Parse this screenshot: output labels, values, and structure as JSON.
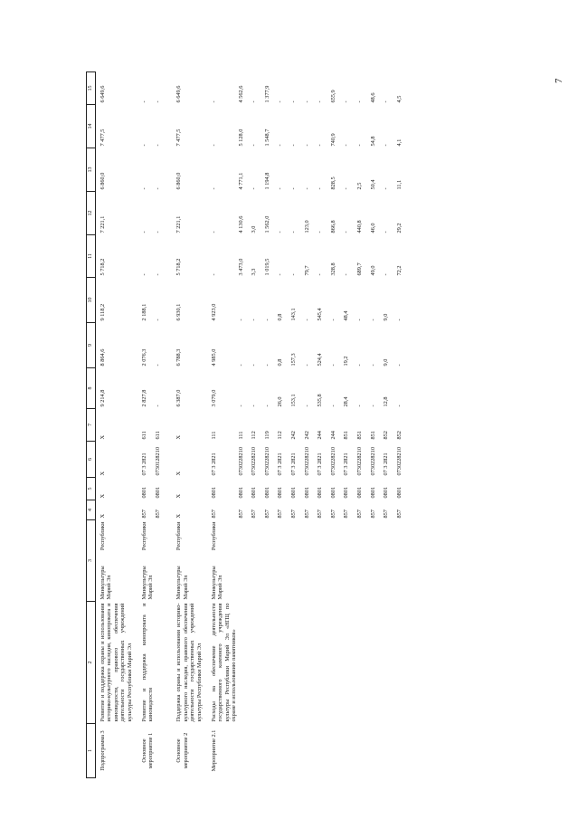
{
  "page_number": "7",
  "columns": [
    "1",
    "2",
    "3",
    "4",
    "5",
    "6",
    "7",
    "8",
    "9",
    "10",
    "11",
    "12",
    "13",
    "14",
    "15"
  ],
  "rows": [
    {
      "c": [
        "Подпрограмма 3",
        "Развитие и поддержка охраны и использования историко-культурного наследия, кинопроката и киновидеости, правового обеспечения деятельности государственных учреждений культуры Республики Марий Эл",
        "Минкультуры Республики Марий Эл",
        "X",
        "X",
        "X",
        "X",
        "9 214,8",
        "8 864,6",
        "9 118,2",
        "5 718,2",
        "7 221,1",
        "6 860,0",
        "7 477,5",
        "6 649,6"
      ]
    },
    {
      "c": [
        "Основное мероприятие 1",
        "Развитие и поддержка кинопроката и киновидеости",
        "Минкультуры Республики Марий Эл",
        "857",
        "0801",
        "07 3 2821",
        "611",
        "2 827,8",
        "2 076,3",
        "2 188,1",
        "-",
        "-",
        "-",
        "-",
        "-"
      ]
    },
    {
      "c": [
        "",
        "",
        "",
        "857",
        "0801",
        "0730128210",
        "611",
        "-",
        "-",
        "-",
        "-",
        "-",
        "-",
        "-",
        "-"
      ]
    },
    {
      "c": [
        "Основное мероприятие 2",
        "Поддержка охраны и использования историко-культурного наследия, правового обеспечения деятельности государственных учреждений культуры Республики Марий Эл",
        "Минкультуры Республики Марий Эл",
        "X",
        "X",
        "X",
        "X",
        "6 387,0",
        "6 788,3",
        "6 930,1",
        "5 718,2",
        "7 221,1",
        "6 860,0",
        "7 477,5",
        "6 649,6"
      ]
    },
    {
      "c": [
        "Мероприятие 2.1",
        "Расходы на обеспечение деятельности государственного казенного учреждения культуры Республики Марий Эл «НПЦ по охране и использованию памятников»",
        "Минкультуры Республики Марий Эл",
        "857",
        "0801",
        "07 3 2821",
        "111",
        "3 079,0",
        "4 985,0",
        "4 923,0",
        "-",
        "-",
        "-",
        "-",
        "-"
      ]
    },
    {
      "c": [
        "",
        "",
        "",
        "857",
        "0801",
        "0730228210",
        "111",
        "-",
        "-",
        "-",
        "3 473,0",
        "4 130,6",
        "4 771,1",
        "5 128,0",
        "4 562,6"
      ]
    },
    {
      "c": [
        "",
        "",
        "",
        "857",
        "0801",
        "0730228210",
        "112",
        "-",
        "-",
        "-",
        "3,3",
        "3,0",
        "-",
        "-",
        "-"
      ]
    },
    {
      "c": [
        "",
        "",
        "",
        "857",
        "0801",
        "0730228210",
        "119",
        "-",
        "-",
        "-",
        "1 019,5",
        "1 562,0",
        "1 194,8",
        "1 548,7",
        "1 377,9"
      ]
    },
    {
      "c": [
        "",
        "",
        "",
        "857",
        "0801",
        "07 3 2821",
        "112",
        "26,0",
        "0,8",
        "0,8",
        "-",
        "-",
        "-",
        "-",
        "-"
      ]
    },
    {
      "c": [
        "",
        "",
        "",
        "857",
        "0801",
        "07 3 2821",
        "242",
        "153,1",
        "157,3",
        "143,1",
        "-",
        "-",
        "-",
        "-",
        "-"
      ]
    },
    {
      "c": [
        "",
        "",
        "",
        "857",
        "0801",
        "0730228210",
        "242",
        "-",
        "-",
        "-",
        "79,7",
        "123,0",
        "-",
        "-",
        "-"
      ]
    },
    {
      "c": [
        "",
        "",
        "",
        "857",
        "0801",
        "07 3 2821",
        "244",
        "535,8",
        "524,4",
        "545,4",
        "-",
        "-",
        "-",
        "-",
        "-"
      ]
    },
    {
      "c": [
        "",
        "",
        "",
        "857",
        "0801",
        "0730228210",
        "244",
        "-",
        "-",
        "-",
        "328,8",
        "866,8",
        "828,5",
        "740,9",
        "655,9"
      ]
    },
    {
      "c": [
        "",
        "",
        "",
        "857",
        "0801",
        "07 3 2821",
        "851",
        "28,4",
        "19,2",
        "48,4",
        "-",
        "-",
        "-",
        "-",
        "-"
      ]
    },
    {
      "c": [
        "",
        "",
        "",
        "857",
        "0801",
        "0730228210",
        "851",
        "-",
        "-",
        "-",
        "689,7",
        "440,8",
        "2,5",
        "-",
        "-"
      ]
    },
    {
      "c": [
        "",
        "",
        "",
        "857",
        "0801",
        "0730228210",
        "851",
        "-",
        "-",
        "-",
        "49,0",
        "46,0",
        "50,4",
        "54,8",
        "48,6"
      ]
    },
    {
      "c": [
        "",
        "",
        "",
        "857",
        "0801",
        "07 3 2821",
        "852",
        "12,8",
        "9,0",
        "9,0",
        "-",
        "-",
        "-",
        "-",
        "-"
      ]
    },
    {
      "c": [
        "",
        "",
        "",
        "857",
        "0801",
        "0730228210",
        "852",
        "-",
        "-",
        "-",
        "72,2",
        "29,2",
        "11,1",
        "4,1",
        "4,5"
      ]
    }
  ]
}
